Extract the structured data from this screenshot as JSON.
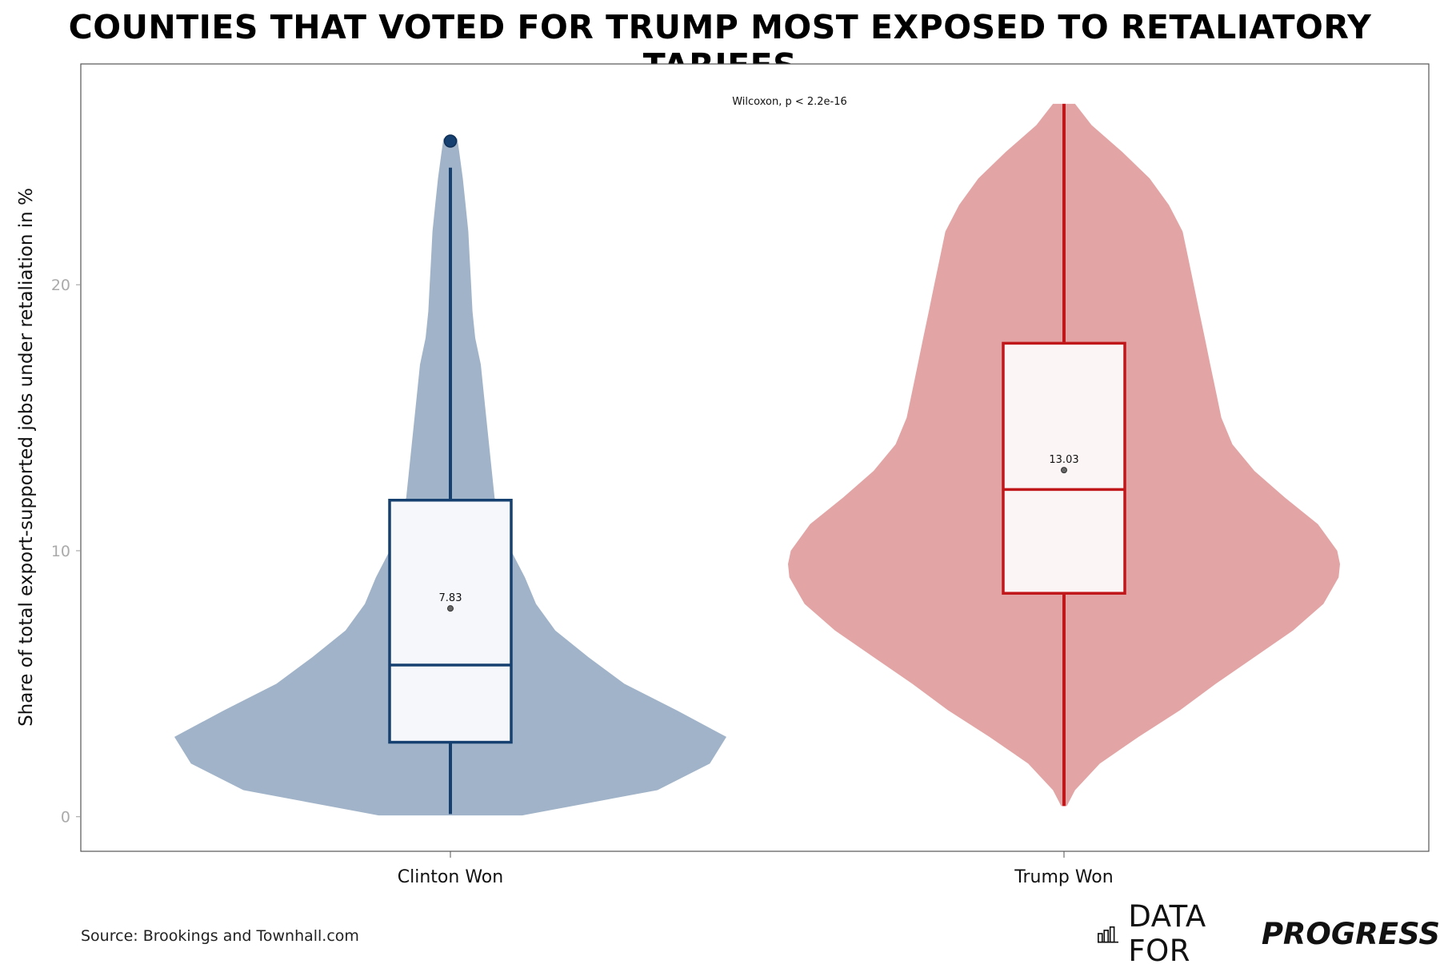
{
  "page_title": "COUNTIES THAT VOTED FOR TRUMP MOST EXPOSED TO RETALIATORY TARIFFS",
  "source_text": "Source: Brookings and Townhall.com",
  "brand": {
    "part1": "DATA FOR",
    "part2": "PROGRESS",
    "icon": "bar-chart-icon"
  },
  "chart_data": {
    "type": "violin",
    "title": "COUNTIES THAT VOTED FOR TRUMP MOST EXPOSED TO RETALIATORY TARIFFS",
    "ylabel": "Share of total export-supported jobs under retaliation in %",
    "xlabel": "",
    "ylim": [
      -1.3,
      28.3
    ],
    "yticks": [
      0,
      10,
      20
    ],
    "categories": [
      "Clinton Won",
      "Trump Won"
    ],
    "annotation": "Wilcoxon, p < 2.2e-16",
    "grid": false,
    "series": [
      {
        "name": "Clinton Won",
        "fill": "#a0b3c8",
        "stroke": "#16406f",
        "box_fill": "#f5f7fa",
        "box": {
          "q1": 2.8,
          "median": 5.7,
          "q3": 11.9,
          "whisker_low": 0.1,
          "whisker_high": 24.4
        },
        "mean": 7.83,
        "mean_label": "7.83",
        "outliers": [
          25.4
        ],
        "density": [
          [
            0.05,
            0.26
          ],
          [
            1,
            0.75
          ],
          [
            2,
            0.94
          ],
          [
            3,
            1.0
          ],
          [
            4,
            0.82
          ],
          [
            5,
            0.63
          ],
          [
            6,
            0.5
          ],
          [
            7,
            0.38
          ],
          [
            8,
            0.31
          ],
          [
            9,
            0.27
          ],
          [
            10,
            0.22
          ],
          [
            11,
            0.19
          ],
          [
            12,
            0.16
          ],
          [
            14,
            0.14
          ],
          [
            16,
            0.12
          ],
          [
            17,
            0.11
          ],
          [
            18,
            0.09
          ],
          [
            19,
            0.08
          ],
          [
            20,
            0.075
          ],
          [
            21,
            0.07
          ],
          [
            22,
            0.065
          ],
          [
            23,
            0.055
          ],
          [
            24,
            0.045
          ],
          [
            25,
            0.032
          ],
          [
            25.5,
            0.025
          ]
        ]
      },
      {
        "name": "Trump Won",
        "fill": "#e2a4a4",
        "stroke": "#c0171b",
        "box_fill": "#fbf5f5",
        "box": {
          "q1": 8.4,
          "median": 12.3,
          "q3": 17.8,
          "whisker_low": 0.4,
          "whisker_high": 26.8
        },
        "mean": 13.03,
        "mean_label": "13.03",
        "outliers": [],
        "density": [
          [
            0.4,
            0.01
          ],
          [
            1,
            0.04
          ],
          [
            2,
            0.13
          ],
          [
            3,
            0.27
          ],
          [
            4,
            0.42
          ],
          [
            5,
            0.55
          ],
          [
            6,
            0.69
          ],
          [
            7,
            0.83
          ],
          [
            8,
            0.94
          ],
          [
            9,
            0.995
          ],
          [
            9.5,
            1.0
          ],
          [
            10,
            0.99
          ],
          [
            11,
            0.92
          ],
          [
            12,
            0.8
          ],
          [
            13,
            0.69
          ],
          [
            14,
            0.61
          ],
          [
            15,
            0.57
          ],
          [
            16,
            0.55
          ],
          [
            17,
            0.53
          ],
          [
            18,
            0.51
          ],
          [
            19,
            0.49
          ],
          [
            20,
            0.47
          ],
          [
            21,
            0.45
          ],
          [
            22,
            0.43
          ],
          [
            23,
            0.38
          ],
          [
            24,
            0.31
          ],
          [
            25,
            0.21
          ],
          [
            26,
            0.1
          ],
          [
            26.8,
            0.04
          ]
        ]
      }
    ]
  }
}
